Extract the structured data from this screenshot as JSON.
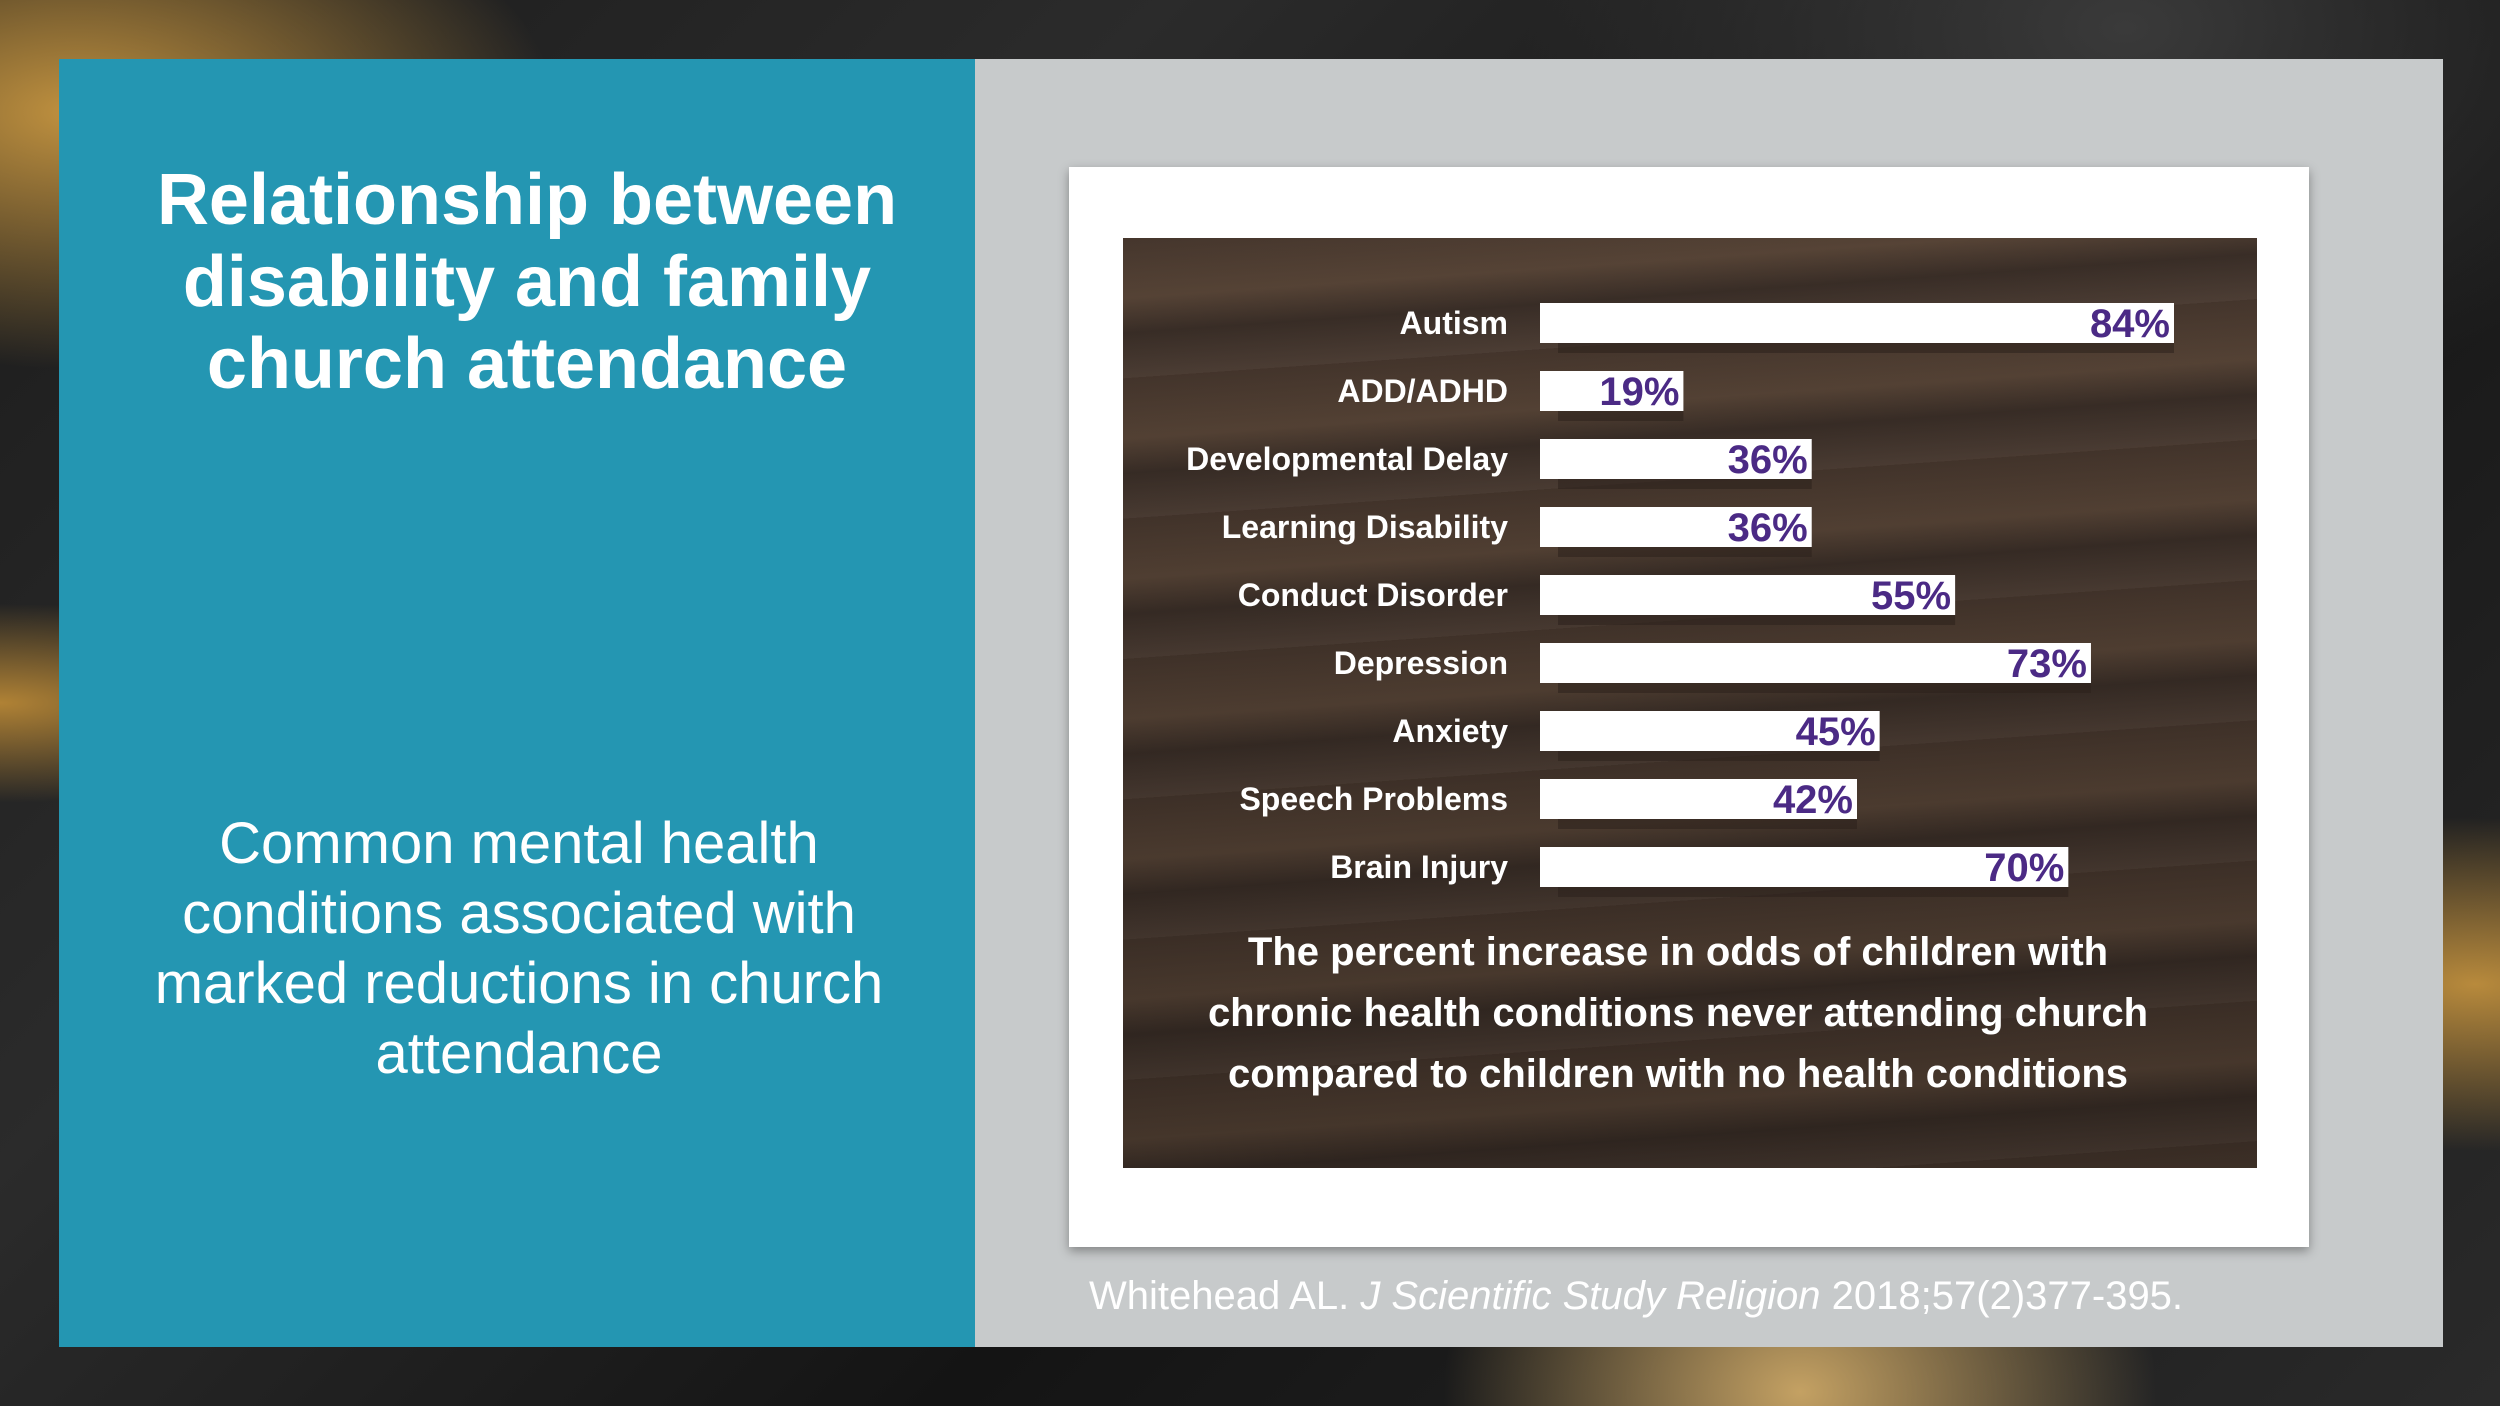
{
  "slide": {
    "title": "Relationship between disability and family church attendance",
    "subtitle": "Common mental health conditions associated with marked reductions in church attendance",
    "citation": {
      "author": "Whitehead AL.",
      "journal": "J Scientific Study Religion",
      "reference": "2018;57(2)377-395."
    }
  },
  "colors": {
    "panel_blue": "#2496b2",
    "label_purple": "#4b2a85",
    "bar_white": "#ffffff"
  },
  "chart_data": {
    "type": "bar",
    "orientation": "horizontal",
    "categories": [
      "Autism",
      "ADD/ADHD",
      "Developmental Delay",
      "Learning Disability",
      "Conduct Disorder",
      "Depression",
      "Anxiety",
      "Speech Problems",
      "Brain Injury"
    ],
    "values": [
      84,
      19,
      36,
      36,
      55,
      73,
      45,
      42,
      70
    ],
    "value_labels": [
      "84%",
      "19%",
      "36%",
      "36%",
      "55%",
      "73%",
      "45%",
      "42%",
      "70%"
    ],
    "xlim": [
      0,
      100
    ],
    "grid": false,
    "caption": [
      "The percent increase in odds of children with",
      "chronic health conditions never attending church",
      "compared to children with no health conditions"
    ]
  }
}
